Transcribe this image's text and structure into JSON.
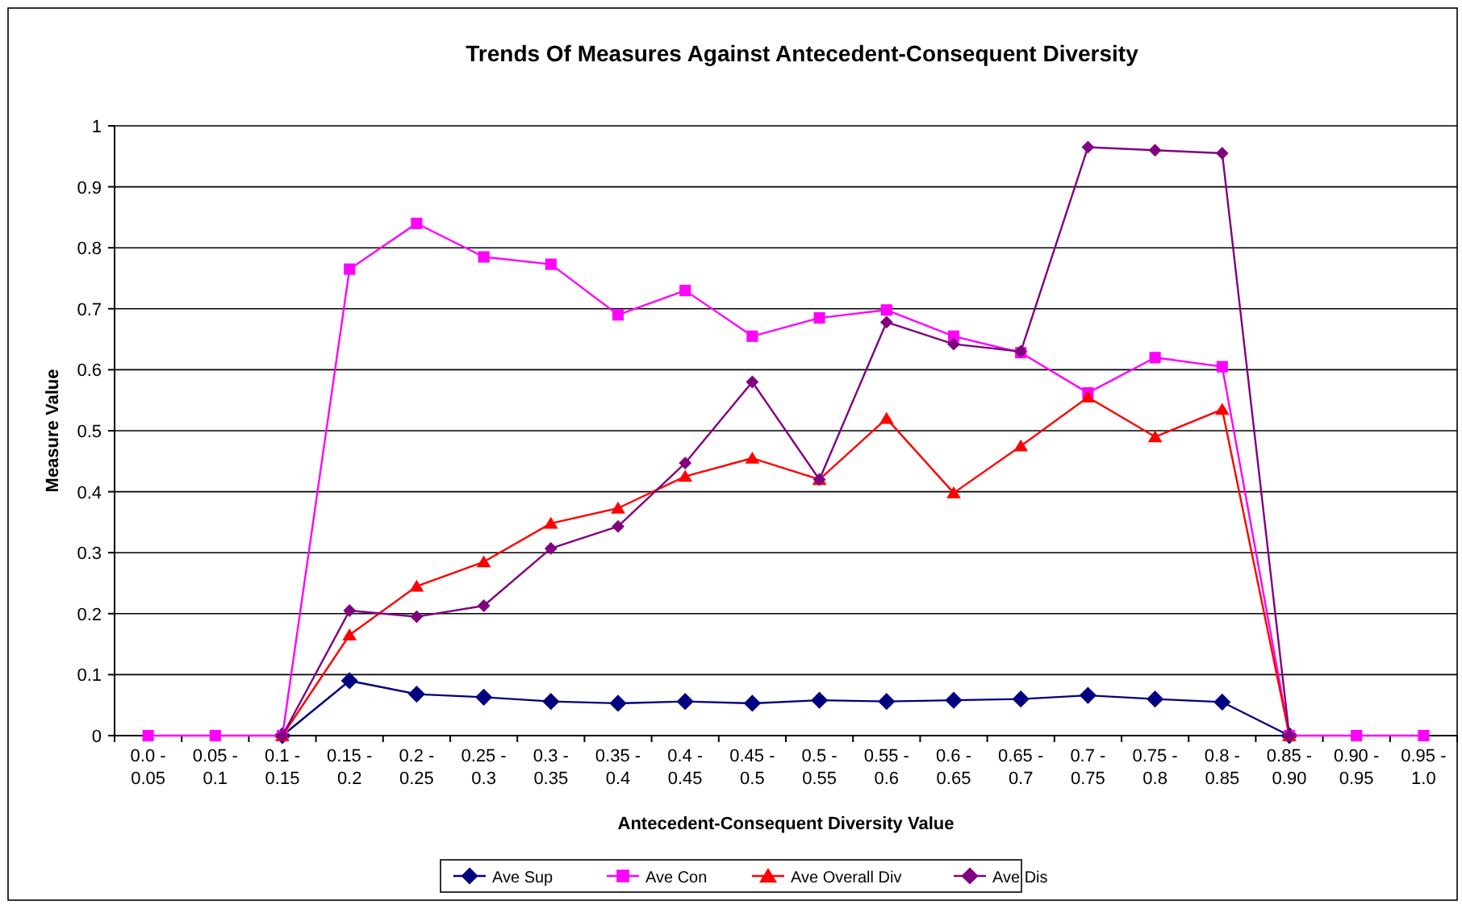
{
  "chart_data": {
    "type": "line",
    "title": "Trends Of Measures Against Antecedent-Consequent Diversity",
    "xlabel": "Antecedent-Consequent Diversity Value",
    "ylabel": "Measure Value",
    "categories": [
      "0.0 - 0.05",
      "0.05 - 0.1",
      "0.1 - 0.15",
      "0.15 - 0.2",
      "0.2 - 0.25",
      "0.25 - 0.3",
      "0.3 - 0.35",
      "0.35 - 0.4",
      "0.4 - 0.45",
      "0.45 - 0.5",
      "0.5 - 0.55",
      "0.55 - 0.6",
      "0.6 - 0.65",
      "0.65 - 0.7",
      "0.7 - 0.75",
      "0.75 - 0.8",
      "0.8 - 0.85",
      "0.85 - 0.90",
      "0.90 - 0.95",
      "0.95 - 1.0"
    ],
    "series": [
      {
        "name": "Ave Sup",
        "color": "#000080",
        "marker": "diamond",
        "values": [
          null,
          null,
          0,
          0.09,
          0.068,
          0.063,
          0.056,
          0.053,
          0.056,
          0.053,
          0.058,
          0.056,
          0.058,
          0.06,
          0.066,
          0.06,
          0.055,
          0,
          null,
          null
        ]
      },
      {
        "name": "Ave Con",
        "color": "#ff00ff",
        "marker": "square",
        "values": [
          0,
          0,
          0,
          0.765,
          0.84,
          0.785,
          0.773,
          0.69,
          0.73,
          0.655,
          0.685,
          0.698,
          0.655,
          0.628,
          0.562,
          0.62,
          0.605,
          0,
          0,
          0
        ]
      },
      {
        "name": "Ave Overall Div",
        "color": "#ff0000",
        "marker": "triangle",
        "values": [
          null,
          null,
          0,
          0.165,
          0.245,
          0.285,
          0.348,
          0.373,
          0.425,
          0.455,
          0.42,
          0.52,
          0.398,
          0.475,
          0.555,
          0.49,
          0.535,
          0,
          null,
          null
        ]
      },
      {
        "name": "Ave Dis",
        "color": "#800080",
        "marker": "diamond",
        "values": [
          null,
          null,
          0,
          0.205,
          0.195,
          0.213,
          0.307,
          0.343,
          0.447,
          0.58,
          0.42,
          0.678,
          0.642,
          0.63,
          0.965,
          0.96,
          0.955,
          0,
          null,
          null
        ]
      }
    ],
    "ylim": [
      0,
      1
    ],
    "yticks": [
      0,
      0.1,
      0.2,
      0.3,
      0.4,
      0.5,
      0.6,
      0.7,
      0.8,
      0.9,
      1
    ],
    "grid": "y",
    "legend": "bottom",
    "line_style": "solid"
  }
}
